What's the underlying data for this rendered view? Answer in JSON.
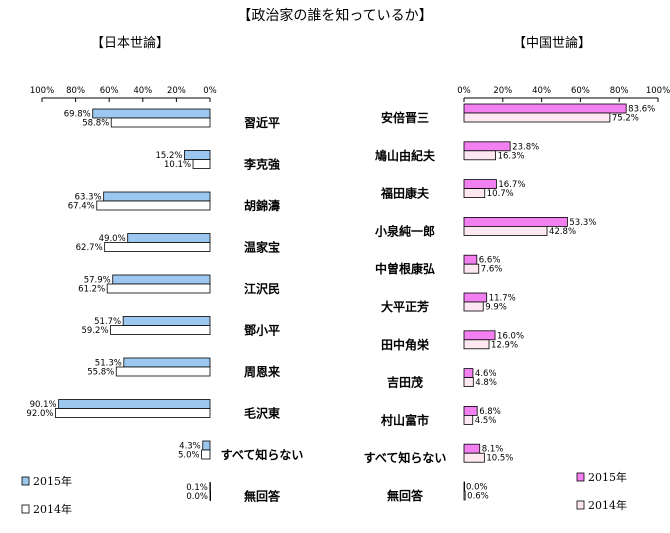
{
  "title": "【政治家の誰を知っているか】",
  "chart_data": [
    {
      "type": "bar",
      "title": "【日本世論】",
      "orientation": "horizontal",
      "x_direction": "reversed",
      "xlim": [
        0,
        100
      ],
      "xticks": [
        "100%",
        "80%",
        "60%",
        "40%",
        "20%",
        "0%"
      ],
      "categories": [
        "習近平",
        "李克強",
        "胡錦濤",
        "温家宝",
        "江沢民",
        "鄧小平",
        "周恩来",
        "毛沢東",
        "すべて知らない",
        "無回答"
      ],
      "series": [
        {
          "name": "2015年",
          "color": "#9cc8f0",
          "values": [
            69.8,
            15.2,
            63.3,
            49.0,
            57.9,
            51.7,
            51.3,
            90.1,
            4.3,
            0.1
          ],
          "labels": [
            "69.8%",
            "15.2%",
            "63.3%",
            "49.0%",
            "57.9%",
            "51.7%",
            "51.3%",
            "90.1%",
            "4.3%",
            "0.1%"
          ]
        },
        {
          "name": "2014年",
          "color": "#ffffff",
          "values": [
            58.8,
            10.1,
            67.4,
            62.7,
            61.2,
            59.2,
            55.8,
            92.0,
            5.0,
            0.0
          ],
          "labels": [
            "58.8%",
            "10.1%",
            "67.4%",
            "62.7%",
            "61.2%",
            "59.2%",
            "55.8%",
            "92.0%",
            "5.0%",
            "0.0%"
          ]
        }
      ],
      "grid": false,
      "legend": "bottom-left"
    },
    {
      "type": "bar",
      "title": "【中国世論】",
      "orientation": "horizontal",
      "xlim": [
        0,
        100
      ],
      "xticks": [
        "0%",
        "20%",
        "40%",
        "60%",
        "80%",
        "100%"
      ],
      "categories": [
        "安倍晋三",
        "鳩山由紀夫",
        "福田康夫",
        "小泉純一郎",
        "中曽根康弘",
        "大平正芳",
        "田中角栄",
        "吉田茂",
        "村山富市",
        "すべて知らない",
        "無回答"
      ],
      "series": [
        {
          "name": "2015年",
          "color": "#f280f0",
          "values": [
            83.6,
            23.8,
            16.7,
            53.3,
            6.6,
            11.7,
            16.0,
            4.6,
            6.8,
            8.1,
            0.0
          ],
          "labels": [
            "83.6%",
            "23.8%",
            "16.7%",
            "53.3%",
            "6.6%",
            "11.7%",
            "16.0%",
            "4.6%",
            "6.8%",
            "8.1%",
            "0.0%"
          ]
        },
        {
          "name": "2014年",
          "color": "#fde8f2",
          "values": [
            75.2,
            16.3,
            10.7,
            42.8,
            7.6,
            9.9,
            12.9,
            4.8,
            4.5,
            10.5,
            0.6
          ],
          "labels": [
            "75.2%",
            "16.3%",
            "10.7%",
            "42.8%",
            "7.6%",
            "9.9%",
            "12.9%",
            "4.8%",
            "4.5%",
            "10.5%",
            "0.6%"
          ]
        }
      ],
      "grid": false,
      "legend": "bottom-right"
    }
  ]
}
